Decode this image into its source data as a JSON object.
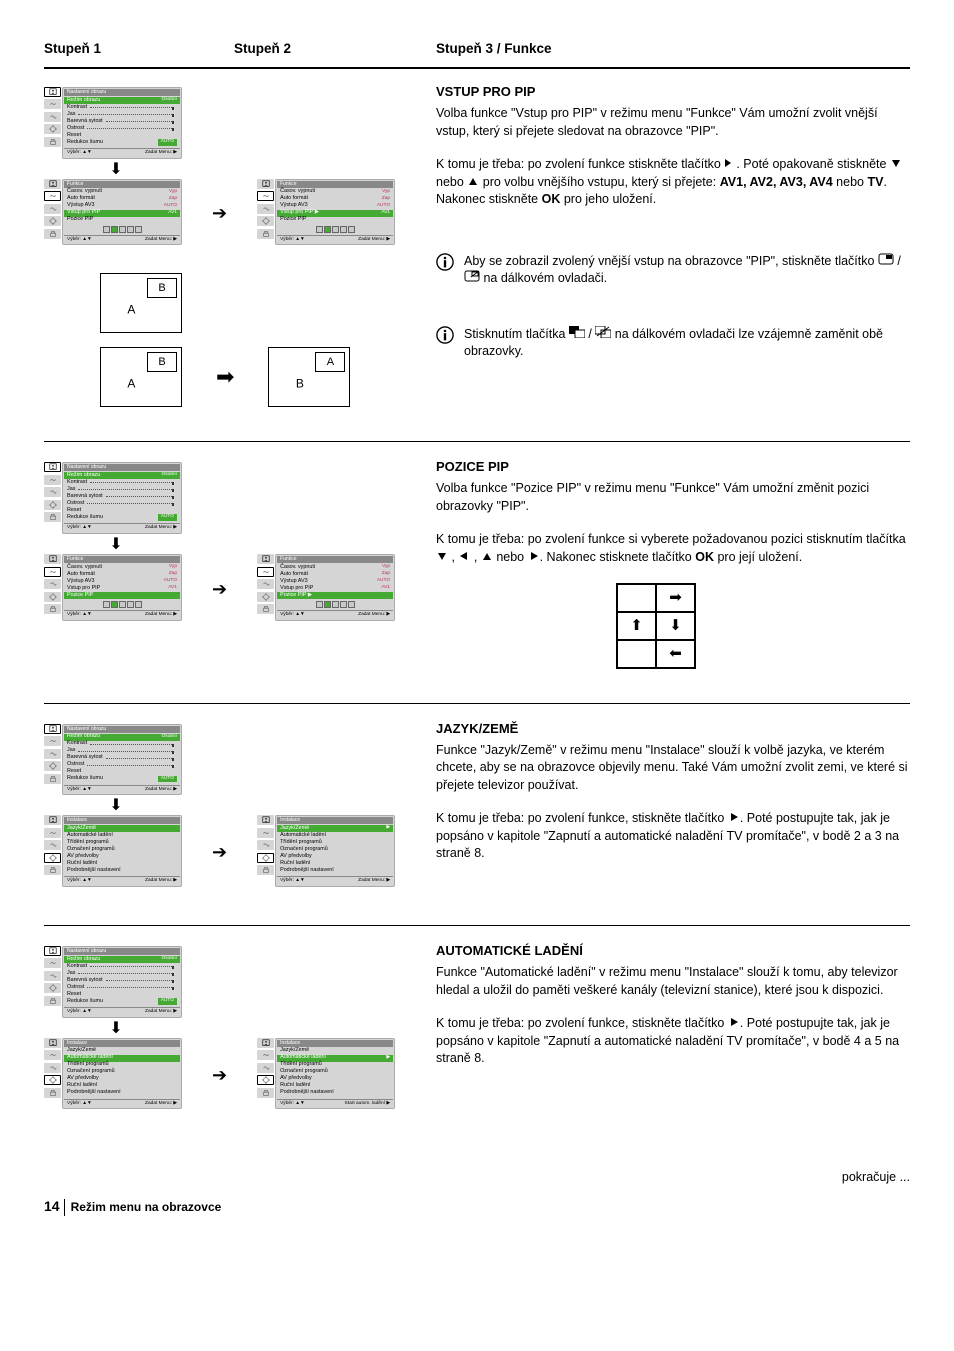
{
  "headers": {
    "h1": "Stupeň  1",
    "h2": "Stupeň 2",
    "h3": "Stupeň 3 / Funkce"
  },
  "osd_picture": {
    "title": "Nastavení obrazu",
    "rows": [
      {
        "lab": "Režim obrazu",
        "val": "Osobní",
        "hl": true
      },
      {
        "lab": "Kontrast",
        "slider": true
      },
      {
        "lab": "Jas",
        "slider": true
      },
      {
        "lab": "Barevná sytost",
        "slider": true
      },
      {
        "lab": "Ostrost",
        "slider": true
      },
      {
        "lab": "Reset"
      },
      {
        "lab": "Redukce šumu",
        "val": "AUTO",
        "valbg": true
      }
    ],
    "foot_l": "Výběr: ▲▼",
    "foot_r": "Zadat Menu: ▶"
  },
  "osd_funkce_a": {
    "title": "Funkce",
    "rows": [
      {
        "lab": "Časov. vypnutí",
        "val": "Vyp"
      },
      {
        "lab": "Auto formát",
        "val": "Zap"
      },
      {
        "lab": "Výstup AV3",
        "val": "AUTO"
      },
      {
        "lab": "Vstup pro PIP",
        "val": "AV1",
        "hl": true
      },
      {
        "lab": "Pozice PIP"
      }
    ],
    "boxes": true,
    "box_on": 1,
    "foot_l": "Výběr: ▲▼",
    "foot_r": "Zadat Menu: ▶"
  },
  "osd_funkce_b": {
    "title": "Funkce",
    "rows": [
      {
        "lab": "Časov. vypnutí",
        "val": "Vyp"
      },
      {
        "lab": "Auto formát",
        "val": "Zap"
      },
      {
        "lab": "Výstup AV3",
        "val": "AUTO"
      },
      {
        "lab": "Vstup pro PIP ▶",
        "val": "AV1",
        "hl": true
      },
      {
        "lab": "Pozice PIP"
      }
    ],
    "boxes": true,
    "box_on": 1,
    "foot_l": "Výběr: ▲▼",
    "foot_r": "Zadat Menu: ▶"
  },
  "osd_funkce_pos_a": {
    "title": "Funkce",
    "rows": [
      {
        "lab": "Časov. vypnutí",
        "val": "Vyp"
      },
      {
        "lab": "Auto formát",
        "val": "Zap"
      },
      {
        "lab": "Výstup AV3",
        "val": "AUTO"
      },
      {
        "lab": "Vstup pro PIP",
        "val": "AV1"
      },
      {
        "lab": "Pozice PIP",
        "hl": true
      }
    ],
    "boxes": true,
    "box_on": 1,
    "foot_l": "Výběr: ▲▼",
    "foot_r": "Zadat Menu: ▶"
  },
  "osd_funkce_pos_b": {
    "title": "Funkce",
    "rows": [
      {
        "lab": "Časov. vypnutí",
        "val": "Vyp"
      },
      {
        "lab": "Auto formát",
        "val": "Zap"
      },
      {
        "lab": "Výstup AV3",
        "val": "AUTO"
      },
      {
        "lab": "Vstup pro PIP",
        "val": "AV1"
      },
      {
        "lab": "Pozice PIP ▶",
        "hl": true
      }
    ],
    "boxes": true,
    "box_on": 1,
    "foot_l": "Výběr: ▲▼",
    "foot_r": "Zadat Menu: ▶"
  },
  "osd_install_a": {
    "title": "Instalace",
    "rows": [
      {
        "lab": "Jazyk/Země",
        "hl": true
      },
      {
        "lab": "Automatické ladění"
      },
      {
        "lab": "Třídění programů"
      },
      {
        "lab": "Označení programů"
      },
      {
        "lab": "AV předvolby"
      },
      {
        "lab": "Ruční ladění"
      },
      {
        "lab": "Podrobnější nastavení"
      }
    ],
    "foot_l": "Výběr: ▲▼",
    "foot_r": "Zadat Menu: ▶"
  },
  "osd_install_b": {
    "title": "Instalace",
    "rows": [
      {
        "lab": "Jazyk/Země",
        "val": "▶",
        "hl": true
      },
      {
        "lab": "Automatické ladění"
      },
      {
        "lab": "Třídění programů"
      },
      {
        "lab": "Označení programů"
      },
      {
        "lab": "AV předvolby"
      },
      {
        "lab": "Ruční ladění"
      },
      {
        "lab": "Podrobnější nastavení"
      }
    ],
    "foot_l": "Výběr: ▲▼",
    "foot_r": "Zadat Menu: ▶"
  },
  "osd_install_c": {
    "title": "Instalace",
    "rows": [
      {
        "lab": "Jazyk/Země"
      },
      {
        "lab": "Automatické ladění",
        "hl": true
      },
      {
        "lab": "Třídění programů"
      },
      {
        "lab": "Označení programů"
      },
      {
        "lab": "AV předvolby"
      },
      {
        "lab": "Ruční ladění"
      },
      {
        "lab": "Podrobnější nastavení"
      }
    ],
    "foot_l": "Výběr: ▲▼",
    "foot_r": "Zadat Menu: ▶"
  },
  "osd_install_d": {
    "title": "Instalace",
    "rows": [
      {
        "lab": "Jazyk/Země"
      },
      {
        "lab": "Automatické ladění",
        "val": "▶",
        "hl": true
      },
      {
        "lab": "Třídění programů"
      },
      {
        "lab": "Označení programů"
      },
      {
        "lab": "AV předvolby"
      },
      {
        "lab": "Ruční ladění"
      },
      {
        "lab": "Podrobnější nastavení"
      }
    ],
    "foot_l": "Výběr: ▲▼",
    "foot_r": "Start autom. ladění ▶"
  },
  "ab1": {
    "A": "A",
    "B": "B"
  },
  "ab2": {
    "leftA": "A",
    "leftB": "B",
    "rightA": "A",
    "rightB": "B"
  },
  "sec1": {
    "title": "VSTUP PRO PIP",
    "p1": "Volba funkce \"Vstup pro PIP\" v režimu menu \"Funkce\" Vám umožní zvolit vnější vstup, který si přejete sledovat na obrazovce \"PIP\".",
    "p2a": "K tomu je třeba: po zvolení funkce stiskněte tlačítko ",
    "p2b": ". Poté opakovaně stiskněte ",
    "p2c": " nebo ",
    "p2d": " pro volbu  vnějšího vstupu, který si přejete: ",
    "p2av": "AV1, AV2, AV3, AV4",
    "p2e": " nebo ",
    "p2tv": "TV",
    "p2f": ". Nakonec stiskněte ",
    "p2ok": "OK",
    "p2g": " pro jeho uložení.",
    "info1a": "Aby se zobrazil zvolený vnější vstup na obrazovce \"PIP\", stiskněte tlačítko ",
    "info1b": " na dálkovém ovladači.",
    "info2a": "Stisknutím tlačítka ",
    "info2b": " na dálkovém ovladači lze vzájemně zaměnit obě obrazovky."
  },
  "sec2": {
    "title": "POZICE PIP",
    "p1": "Volba funkce \"Pozice PIP\" v režimu menu \"Funkce\" Vám umožní změnit pozici obrazovky \"PIP\".",
    "p2a": "K tomu je třeba: po zvolení funkce si vyberete požadovanou pozici stisknutím tlačítka ",
    "p2b": " ,  ",
    "p2c": " ,  ",
    "p2d": "  nebo ",
    "p2e": ". Nakonec stisknete tlačítko ",
    "p2ok": "OK",
    "p2f": " pro její uložení."
  },
  "sec3": {
    "title": "JAZYK/ZEMĚ",
    "p1": "Funkce \"Jazyk/Země\" v režimu menu \"Instalace\" slouží k volbě jazyka, ve kterém chcete, aby se na obrazovce objevily menu. Také Vám umožní zvolit zemi, ve které si přejete televizor používat.",
    "p2a": "K tomu je třeba: po zvolení funkce, stiskněte tlačítko ",
    "p2b": ". Poté postupujte tak, jak je popsáno v kapitole \"Zapnutí a automatické naladění TV promítače\", v bodě 2 a 3 na straně 8."
  },
  "sec4": {
    "title": "AUTOMATICKÉ LADĚNÍ",
    "p1": "Funkce \"Automatické ladění\" v režimu menu \"Instalace\" slouží k tomu, aby televizor hledal a uložil do paměti veškeré kanály (televizní stanice), které jsou k dispozici.",
    "p2a": "K tomu je třeba: po zvolení funkce, stiskněte tlačítko ",
    "p2b": ". Poté postupujte tak, jak je popsáno v kapitole \"Zapnutí a automatické naladění TV promítače\", v bodě 4 a 5 na straně 8."
  },
  "footer": {
    "cont": "pokračuje ...",
    "num": "14",
    "text": "Režim menu na obrazovce"
  },
  "glyphs": {
    "right": "▶",
    "down": "▼",
    "up": "▲",
    "left": "◀",
    "slash": " / "
  }
}
